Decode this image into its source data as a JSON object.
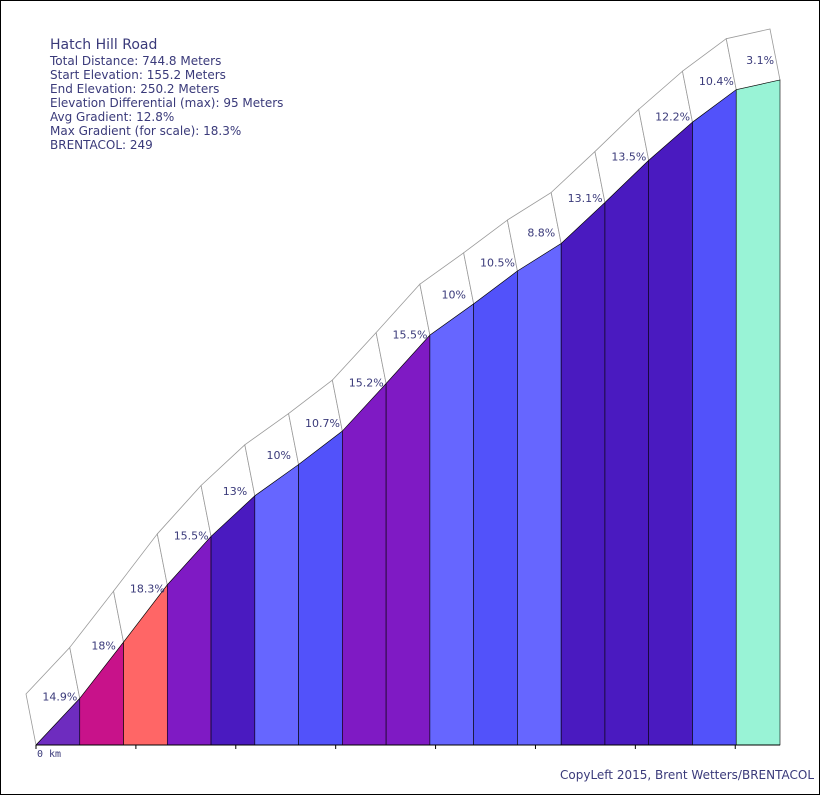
{
  "chart_data": {
    "type": "area",
    "title": "Hatch Hill Road",
    "stats": [
      "Total Distance: 744.8 Meters",
      "Start Elevation: 155.2 Meters",
      "End Elevation: 250.2 Meters",
      "Elevation Differential (max): 95 Meters",
      "Avg Gradient: 12.8%",
      "Max Gradient (for scale): 18.3%",
      "BRENTACOL: 249"
    ],
    "x_start_label": "0 km",
    "credit": "CopyLeft 2015, Brent Wetters/BRENTACOL",
    "segment_length_m": 40,
    "segments": [
      {
        "gradient": 14.9,
        "label": "14.9%",
        "color": "#6e2cbf"
      },
      {
        "gradient": 18.0,
        "label": "18%",
        "color": "#c8128a"
      },
      {
        "gradient": 18.3,
        "label": "18.3%",
        "color": "#ff6666"
      },
      {
        "gradient": 15.5,
        "label": "15.5%",
        "color": "#7f1ac4"
      },
      {
        "gradient": 13.0,
        "label": "13%",
        "color": "#4a1ac0"
      },
      {
        "gradient": 10.0,
        "label": "10%",
        "color": "#6666ff"
      },
      {
        "gradient": 10.7,
        "label": "10.7%",
        "color": "#5252fa"
      },
      {
        "gradient": 15.2,
        "label": "15.2%",
        "color": "#7f1ac4"
      },
      {
        "gradient": 15.5,
        "label": "15.5%",
        "color": "#7f1ac4"
      },
      {
        "gradient": 10.0,
        "label": "10%",
        "color": "#6666ff"
      },
      {
        "gradient": 10.5,
        "label": "10.5%",
        "color": "#5252fa"
      },
      {
        "gradient": 8.8,
        "label": "8.8%",
        "color": "#6666ff"
      },
      {
        "gradient": 13.1,
        "label": "13.1%",
        "color": "#4a1ac0"
      },
      {
        "gradient": 13.5,
        "label": "13.5%",
        "color": "#4a1ac0"
      },
      {
        "gradient": 12.2,
        "label": "12.2%",
        "color": "#4a1ac0"
      },
      {
        "gradient": 10.4,
        "label": "10.4%",
        "color": "#5252fa"
      },
      {
        "gradient": 3.1,
        "label": "3.1%",
        "color": "#99f3d6"
      }
    ]
  }
}
